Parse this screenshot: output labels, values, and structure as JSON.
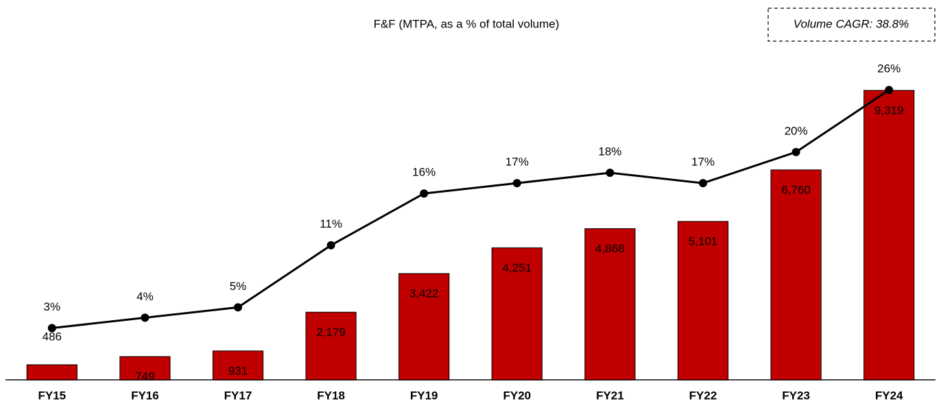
{
  "chart_data": {
    "type": "bar_line",
    "title": "F&F (MTPA, as a % of total volume)",
    "annotation": "Volume CAGR: 38.8%",
    "categories": [
      "FY15",
      "FY16",
      "FY17",
      "FY18",
      "FY19",
      "FY20",
      "FY21",
      "FY22",
      "FY23",
      "FY24"
    ],
    "series": [
      {
        "name": "F&F volume",
        "type": "bar",
        "color": "#c00000",
        "values": [
          486,
          749,
          931,
          2179,
          3422,
          4251,
          4868,
          5101,
          6760,
          9319
        ],
        "value_labels": [
          "486",
          "749",
          "931",
          "2,179",
          "3,422",
          "4,251",
          "4,868",
          "5,101",
          "6,760",
          "9,319"
        ]
      },
      {
        "name": "% of total volume",
        "type": "line",
        "axis": "y2",
        "color": "#000000",
        "values": [
          3,
          4,
          5,
          11,
          16,
          17,
          18,
          17,
          20,
          26
        ],
        "value_labels": [
          "3%",
          "4%",
          "5%",
          "11%",
          "16%",
          "17%",
          "18%",
          "17%",
          "20%",
          "26%"
        ]
      }
    ],
    "ylim": [
      0,
      10000
    ],
    "y2lim": [
      -2,
      28
    ]
  }
}
